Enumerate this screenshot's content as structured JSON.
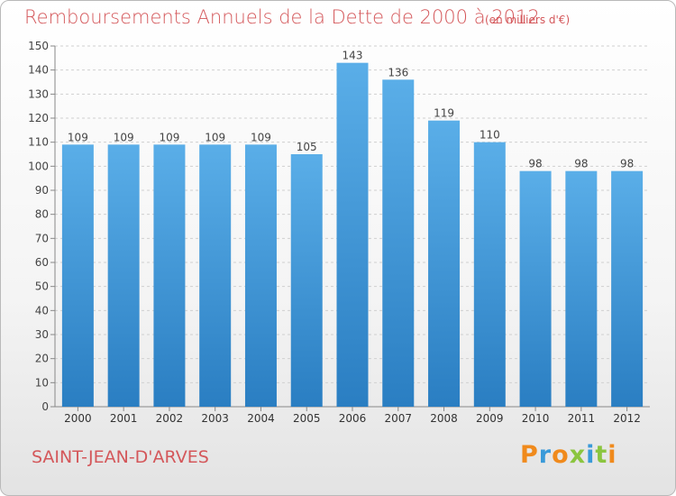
{
  "header": {
    "title": "Remboursements Annuels de la Dette de 2000 à 2012",
    "subtitle": "(en milliers d'€)"
  },
  "footer": {
    "place": "SAINT-JEAN-D'ARVES",
    "brand": "Proxiti"
  },
  "colors": {
    "title": "#d4575a",
    "bar_top": "#5aaee8",
    "bar_bottom": "#2a7ec2",
    "brand_letters": [
      "#f08a1c",
      "#3a9ad9",
      "#f08a1c",
      "#8bc53f",
      "#3a9ad9",
      "#8bc53f",
      "#f08a1c"
    ]
  },
  "chart_data": {
    "type": "bar",
    "categories": [
      "2000",
      "2001",
      "2002",
      "2003",
      "2004",
      "2005",
      "2006",
      "2007",
      "2008",
      "2009",
      "2010",
      "2011",
      "2012"
    ],
    "values": [
      109,
      109,
      109,
      109,
      109,
      105,
      143,
      136,
      119,
      110,
      98,
      98,
      98
    ],
    "ylim": [
      0,
      150
    ],
    "yticks": [
      0,
      10,
      20,
      30,
      40,
      50,
      60,
      70,
      80,
      90,
      100,
      110,
      120,
      130,
      140,
      150
    ],
    "grid": true
  }
}
